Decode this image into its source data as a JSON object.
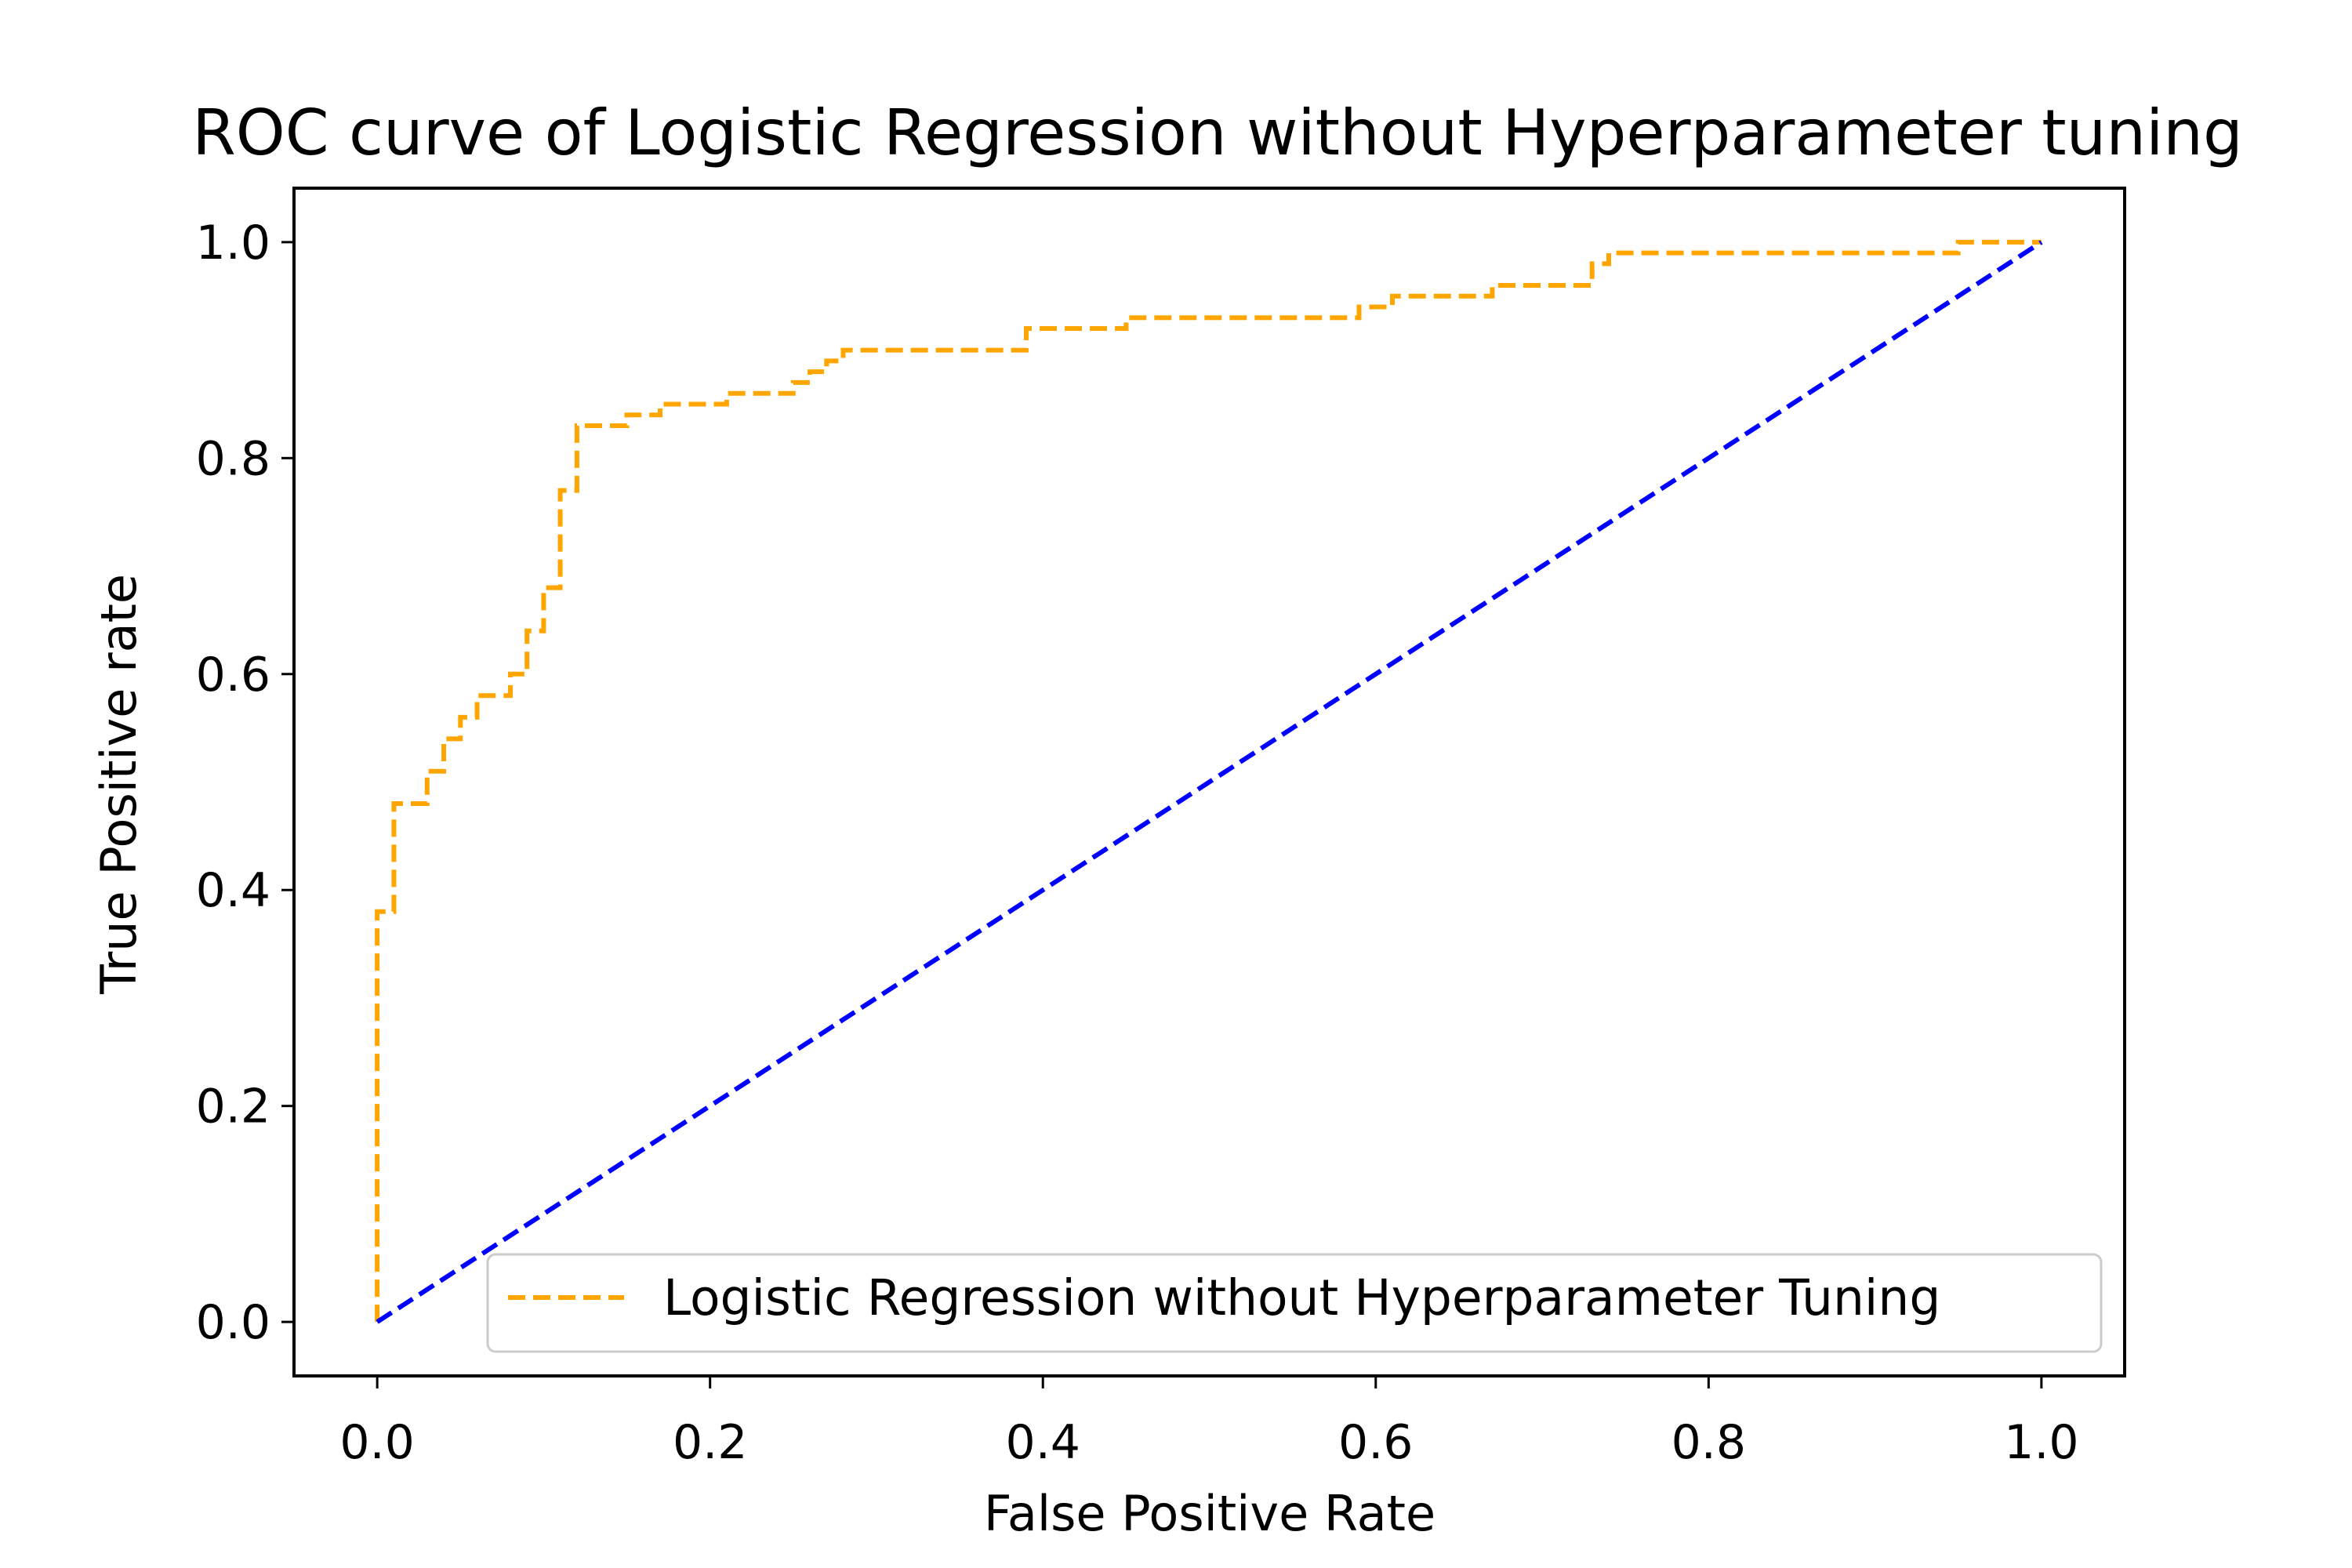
{
  "chart_data": {
    "type": "line",
    "title": "ROC curve of Logistic Regression without Hyperparameter tuning",
    "xlabel": "False Positive Rate",
    "ylabel": "True Positive rate",
    "xlim": [
      -0.05,
      1.05
    ],
    "ylim": [
      -0.05,
      1.05
    ],
    "xticks": [
      "0.0",
      "0.2",
      "0.4",
      "0.6",
      "0.8",
      "1.0"
    ],
    "yticks": [
      "0.0",
      "0.2",
      "0.4",
      "0.6",
      "0.8",
      "1.0"
    ],
    "grid": false,
    "legend": {
      "placement": "lower right",
      "entries": [
        "Logistic Regression without Hyperparameter Tuning"
      ]
    },
    "series": [
      {
        "name": "Logistic Regression without Hyperparameter Tuning",
        "color": "#ffa500",
        "style": "dashed",
        "x": [
          0.0,
          0.0,
          0.01,
          0.01,
          0.03,
          0.03,
          0.04,
          0.04,
          0.05,
          0.05,
          0.06,
          0.06,
          0.08,
          0.08,
          0.09,
          0.09,
          0.1,
          0.1,
          0.11,
          0.11,
          0.12,
          0.12,
          0.15,
          0.15,
          0.17,
          0.17,
          0.21,
          0.21,
          0.25,
          0.25,
          0.26,
          0.26,
          0.27,
          0.27,
          0.28,
          0.28,
          0.39,
          0.39,
          0.45,
          0.45,
          0.59,
          0.59,
          0.61,
          0.61,
          0.67,
          0.67,
          0.73,
          0.73,
          0.74,
          0.74,
          0.75,
          0.75,
          0.95,
          0.95,
          1.0,
          1.0
        ],
        "y": [
          0.0,
          0.38,
          0.38,
          0.48,
          0.48,
          0.51,
          0.51,
          0.54,
          0.54,
          0.56,
          0.56,
          0.58,
          0.58,
          0.6,
          0.6,
          0.64,
          0.64,
          0.68,
          0.68,
          0.77,
          0.77,
          0.83,
          0.83,
          0.84,
          0.84,
          0.85,
          0.85,
          0.86,
          0.86,
          0.87,
          0.87,
          0.88,
          0.88,
          0.89,
          0.89,
          0.9,
          0.9,
          0.92,
          0.92,
          0.93,
          0.93,
          0.94,
          0.94,
          0.95,
          0.95,
          0.96,
          0.96,
          0.98,
          0.98,
          0.99,
          0.99,
          0.99,
          0.99,
          1.0,
          1.0,
          1.0
        ]
      },
      {
        "color": "#0000ff",
        "style": "dashed",
        "x": [
          0.0,
          1.0
        ],
        "y": [
          0.0,
          1.0
        ]
      }
    ]
  }
}
